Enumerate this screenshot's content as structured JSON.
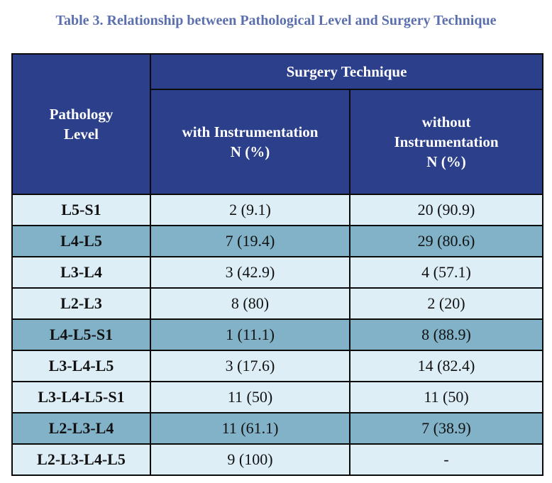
{
  "caption": "Table 3. Relationship between Pathological Level and Surgery Technique",
  "header": {
    "pathology_level": [
      "Pathology",
      "Level"
    ],
    "surgery_technique": "Surgery Technique",
    "with_instr": [
      "with Instrumentation",
      "N (%)"
    ],
    "without_instr": [
      "without",
      "Instrumentation",
      "N (%)"
    ]
  },
  "rows": [
    {
      "level": "L5-S1",
      "with": "2 (9.1)",
      "without": "20 (90.9)",
      "shade": "light"
    },
    {
      "level": "L4-L5",
      "with": "7 (19.4)",
      "without": "29 (80.6)",
      "shade": "dark"
    },
    {
      "level": "L3-L4",
      "with": "3 (42.9)",
      "without": "4 (57.1)",
      "shade": "light"
    },
    {
      "level": "L2-L3",
      "with": "8 (80)",
      "without": "2 (20)",
      "shade": "light"
    },
    {
      "level": "L4-L5-S1",
      "with": "1 (11.1)",
      "without": "8 (88.9)",
      "shade": "dark"
    },
    {
      "level": "L3-L4-L5",
      "with": "3 (17.6)",
      "without": "14 (82.4)",
      "shade": "light"
    },
    {
      "level": "L3-L4-L5-S1",
      "with": "11 (50)",
      "without": "11 (50)",
      "shade": "light"
    },
    {
      "level": "L2-L3-L4",
      "with": "11 (61.1)",
      "without": "7 (38.9)",
      "shade": "dark"
    },
    {
      "level": "L2-L3-L4-L5",
      "with": "9 (100)",
      "without": "-",
      "shade": "light"
    }
  ]
}
